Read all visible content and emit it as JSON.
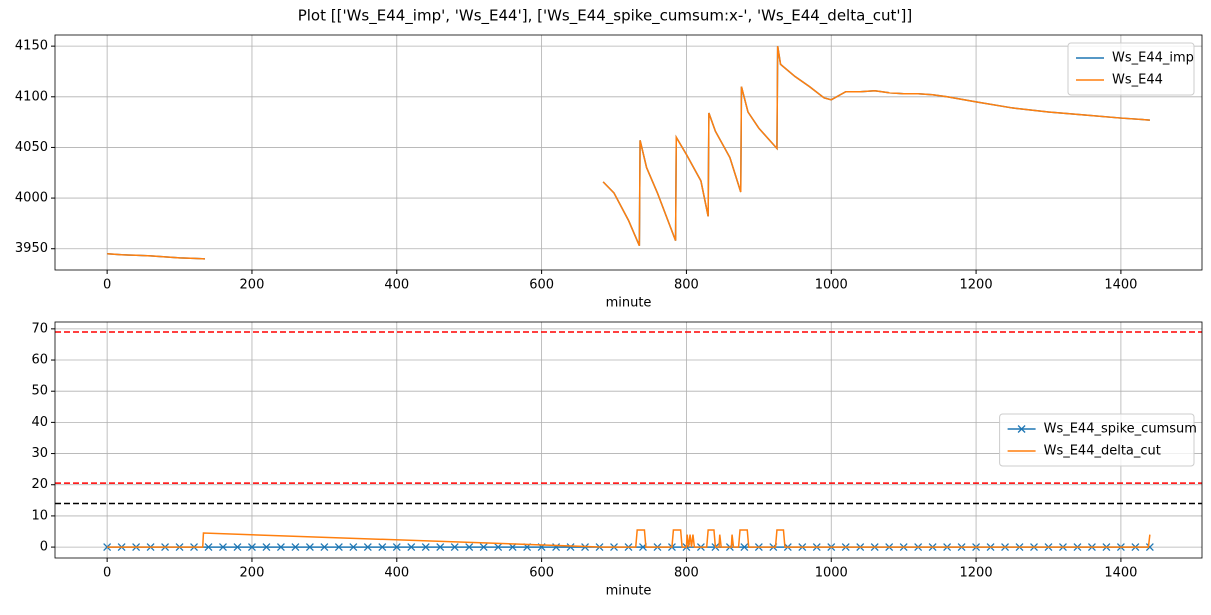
{
  "title": "Plot [['Ws_E44_imp', 'Ws_E44'], ['Ws_E44_spike_cumsum:x-', 'Ws_E44_delta_cut']]",
  "chart_data": [
    {
      "type": "line",
      "xlabel": "minute",
      "grid": true,
      "legend": "upper right",
      "xlim": [
        -72,
        1512
      ],
      "xticks": [
        0,
        200,
        400,
        600,
        800,
        1000,
        1200,
        1400
      ],
      "ylim": [
        3929,
        4161
      ],
      "yticks": [
        3950,
        4000,
        4050,
        4100,
        4150
      ],
      "x": [
        0,
        20,
        40,
        60,
        80,
        100,
        120,
        135,
        400,
        685,
        700,
        720,
        735,
        736,
        745,
        760,
        785,
        786,
        800,
        820,
        830,
        831,
        840,
        860,
        875,
        876,
        885,
        900,
        925,
        926,
        930,
        950,
        970,
        990,
        1000,
        1010,
        1020,
        1040,
        1060,
        1080,
        1100,
        1120,
        1140,
        1160,
        1200,
        1250,
        1300,
        1350,
        1400,
        1440
      ],
      "series": [
        {
          "name": "Ws_E44_imp",
          "color": "#1f77b4",
          "values": [
            3945,
            3944,
            3943.5,
            3943,
            3942,
            3941,
            3940.5,
            3940,
            null,
            4016,
            4005,
            3978,
            3953,
            4057,
            4030,
            4005,
            3958,
            4060,
            4043,
            4017,
            3982,
            4084,
            4066,
            4040,
            4006,
            4110,
            4085,
            4069,
            4049,
            4150,
            4132,
            4120,
            4110,
            4099,
            4097,
            4101,
            4105,
            4105,
            4106,
            4104,
            4103,
            4103,
            4102,
            4100,
            4095,
            4089,
            4085,
            4082,
            4079,
            4077
          ]
        },
        {
          "name": "Ws_E44",
          "color": "#ff7f0e",
          "values": [
            3945,
            3944,
            3943.5,
            3943,
            3942,
            3941,
            3940.5,
            3940,
            null,
            4016,
            4005,
            3978,
            3953,
            4057,
            4030,
            4005,
            3958,
            4060,
            4043,
            4017,
            3982,
            4084,
            4066,
            4040,
            4006,
            4110,
            4085,
            4069,
            4049,
            4150,
            4132,
            4120,
            4110,
            4099,
            4097,
            4101,
            4105,
            4105,
            4106,
            4104,
            4103,
            4103,
            4102,
            4100,
            4095,
            4089,
            4085,
            4082,
            4079,
            4077
          ]
        }
      ]
    },
    {
      "type": "line",
      "xlabel": "minute",
      "grid": true,
      "legend": "center right",
      "xlim": [
        -72,
        1512
      ],
      "xticks": [
        0,
        200,
        400,
        600,
        800,
        1000,
        1200,
        1400
      ],
      "ylim": [
        -3.5,
        72.2
      ],
      "yticks": [
        0,
        10,
        20,
        30,
        40,
        50,
        60,
        70
      ],
      "hlines": [
        {
          "value": 69,
          "color": "#ff0000"
        },
        {
          "value": 20.5,
          "color": "#ff0000"
        },
        {
          "value": 14,
          "color": "#000000"
        }
      ],
      "series": [
        {
          "name": "Ws_E44_spike_cumsum",
          "color": "#1f77b4",
          "marker": "x",
          "x": [
            0,
            20,
            40,
            60,
            80,
            100,
            120,
            140,
            160,
            180,
            200,
            220,
            240,
            260,
            280,
            300,
            320,
            340,
            360,
            380,
            400,
            420,
            440,
            460,
            480,
            500,
            520,
            540,
            560,
            580,
            600,
            620,
            640,
            660,
            680,
            700,
            720,
            740,
            760,
            780,
            800,
            820,
            840,
            860,
            880,
            900,
            920,
            940,
            960,
            980,
            1000,
            1020,
            1040,
            1060,
            1080,
            1100,
            1120,
            1140,
            1160,
            1180,
            1200,
            1220,
            1240,
            1260,
            1280,
            1300,
            1320,
            1340,
            1360,
            1380,
            1400,
            1420,
            1440
          ],
          "values": [
            0,
            0,
            0,
            0,
            0,
            0,
            0,
            0,
            0,
            0,
            0,
            0,
            0,
            0,
            0,
            0,
            0,
            0,
            0,
            0,
            0,
            0,
            0,
            0,
            0,
            0,
            0,
            0,
            0,
            0,
            0,
            0,
            0,
            0,
            0,
            0,
            0,
            0,
            0,
            0,
            0,
            0,
            0,
            0,
            0,
            0,
            0,
            0,
            0,
            0,
            0,
            0,
            0,
            0,
            0,
            0,
            0,
            0,
            0,
            0,
            0,
            0,
            0,
            0,
            0,
            0,
            0,
            0,
            0,
            0,
            0,
            0,
            0
          ]
        },
        {
          "name": "Ws_E44_delta_cut",
          "color": "#ff7f0e",
          "x": [
            0,
            132,
            133,
            685,
            730,
            732,
            742,
            744,
            780,
            782,
            792,
            794,
            800,
            801,
            803,
            805,
            807,
            809,
            811,
            828,
            830,
            838,
            840,
            845,
            846,
            848,
            862,
            863,
            865,
            872,
            874,
            884,
            886,
            923,
            925,
            934,
            936,
            1438,
            1440
          ],
          "values": [
            0,
            0,
            4.5,
            0,
            0,
            5.5,
            5.5,
            0,
            0,
            5.5,
            5.5,
            0,
            0,
            4,
            0,
            4,
            0,
            4,
            0,
            0,
            5.5,
            5.5,
            0,
            0,
            4,
            0,
            0,
            4,
            0,
            0,
            5.5,
            5.5,
            0,
            0,
            5.5,
            5.5,
            0,
            0,
            4
          ]
        }
      ]
    }
  ]
}
